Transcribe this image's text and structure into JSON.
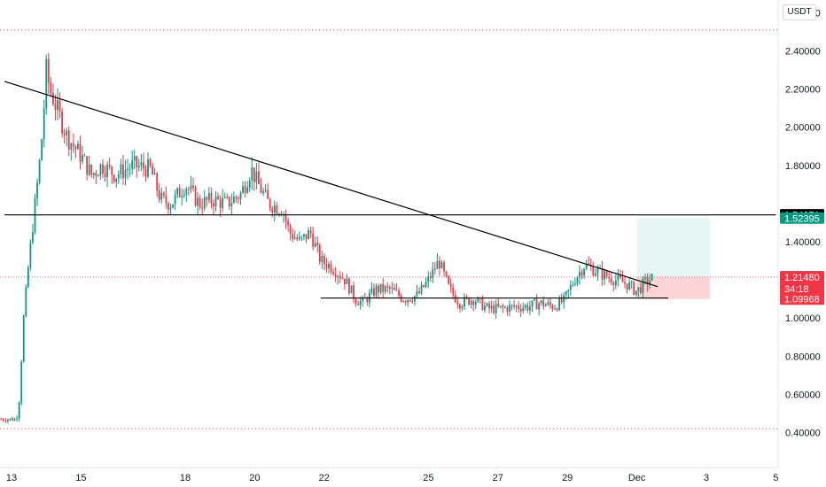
{
  "currency_label": "USDT",
  "chart_data": {
    "type": "candlestick",
    "title": "",
    "ylim": [
      0.35,
      2.65
    ],
    "y_ticks": [
      "2.60000",
      "2.40000",
      "2.20000",
      "2.00000",
      "1.80000",
      "1.40000",
      "1.00000",
      "0.80000",
      "0.60000",
      "0.40000"
    ],
    "y_tick_values": [
      2.6,
      2.4,
      2.2,
      2.0,
      1.8,
      1.4,
      1.0,
      0.8,
      0.6,
      0.4
    ],
    "x_ticks": [
      {
        "label": "13",
        "day": 13
      },
      {
        "label": "15",
        "day": 15
      },
      {
        "label": "18",
        "day": 18
      },
      {
        "label": "20",
        "day": 20
      },
      {
        "label": "22",
        "day": 22
      },
      {
        "label": "25",
        "day": 25
      },
      {
        "label": "27",
        "day": 27
      },
      {
        "label": "29",
        "day": 29
      },
      {
        "label": "Dec",
        "day": 31
      },
      {
        "label": "3",
        "day": 33
      },
      {
        "label": "5",
        "day": 35
      }
    ],
    "price_path": [
      [
        12.7,
        0.47
      ],
      [
        13.1,
        0.47
      ],
      [
        13.2,
        0.5
      ],
      [
        13.35,
        1.0
      ],
      [
        13.5,
        1.3
      ],
      [
        13.65,
        1.55
      ],
      [
        13.8,
        1.8
      ],
      [
        13.9,
        2.0
      ],
      [
        14.0,
        2.3
      ],
      [
        14.1,
        2.2
      ],
      [
        14.3,
        2.1
      ],
      [
        14.6,
        1.95
      ],
      [
        15.0,
        1.85
      ],
      [
        15.3,
        1.75
      ],
      [
        15.6,
        1.8
      ],
      [
        16.0,
        1.75
      ],
      [
        16.5,
        1.8
      ],
      [
        17.0,
        1.78
      ],
      [
        17.3,
        1.62
      ],
      [
        17.6,
        1.6
      ],
      [
        18.0,
        1.7
      ],
      [
        18.4,
        1.6
      ],
      [
        18.8,
        1.62
      ],
      [
        19.2,
        1.6
      ],
      [
        19.6,
        1.65
      ],
      [
        19.9,
        1.78
      ],
      [
        20.1,
        1.7
      ],
      [
        20.4,
        1.6
      ],
      [
        20.8,
        1.57
      ],
      [
        21.0,
        1.45
      ],
      [
        21.3,
        1.4
      ],
      [
        21.6,
        1.45
      ],
      [
        21.9,
        1.3
      ],
      [
        22.2,
        1.27
      ],
      [
        22.6,
        1.2
      ],
      [
        22.9,
        1.1
      ],
      [
        23.1,
        1.08
      ],
      [
        23.5,
        1.15
      ],
      [
        23.9,
        1.15
      ],
      [
        24.3,
        1.1
      ],
      [
        24.7,
        1.12
      ],
      [
        25.0,
        1.2
      ],
      [
        25.3,
        1.3
      ],
      [
        25.6,
        1.15
      ],
      [
        25.9,
        1.08
      ],
      [
        26.3,
        1.1
      ],
      [
        26.7,
        1.05
      ],
      [
        27.1,
        1.05
      ],
      [
        27.5,
        1.06
      ],
      [
        27.9,
        1.06
      ],
      [
        28.2,
        1.08
      ],
      [
        28.6,
        1.06
      ],
      [
        28.9,
        1.09
      ],
      [
        29.2,
        1.2
      ],
      [
        29.5,
        1.28
      ],
      [
        29.8,
        1.25
      ],
      [
        30.1,
        1.22
      ],
      [
        30.4,
        1.2
      ],
      [
        30.7,
        1.18
      ],
      [
        31.0,
        1.14
      ],
      [
        31.2,
        1.18
      ],
      [
        31.45,
        1.21
      ]
    ],
    "trendlines": [
      {
        "from": [
          12.8,
          2.24
        ],
        "to": [
          31.6,
          1.165
        ]
      },
      {
        "from": [
          12.8,
          1.54071
        ],
        "to": [
          35.0,
          1.54071
        ]
      },
      {
        "from": [
          21.9,
          1.105
        ],
        "to": [
          31.9,
          1.105
        ]
      }
    ],
    "dotted_levels": [
      2.51,
      0.42
    ],
    "last_price_line": 1.2148,
    "position": {
      "x_from": 31.0,
      "x_to": 33.1,
      "entry": 1.2148,
      "target": 1.52395,
      "stop": 1.09968
    },
    "price_tags": [
      {
        "label": "1.54071",
        "value": 1.54071,
        "color": "#000000"
      },
      {
        "label": "1.52395",
        "value": 1.52395,
        "color": "#089981"
      },
      {
        "label": "1.21672",
        "value": 1.21672,
        "color": "#787b86"
      },
      {
        "label": "1.21480",
        "value": 1.2148,
        "color": "#f23645",
        "sub": "34:18"
      },
      {
        "label": "1.09968",
        "value": 1.09968,
        "color": "#f23645"
      }
    ],
    "colors": {
      "up": "#089981",
      "down": "#f23645",
      "line": "#000000",
      "dotted": "#f23645"
    }
  }
}
